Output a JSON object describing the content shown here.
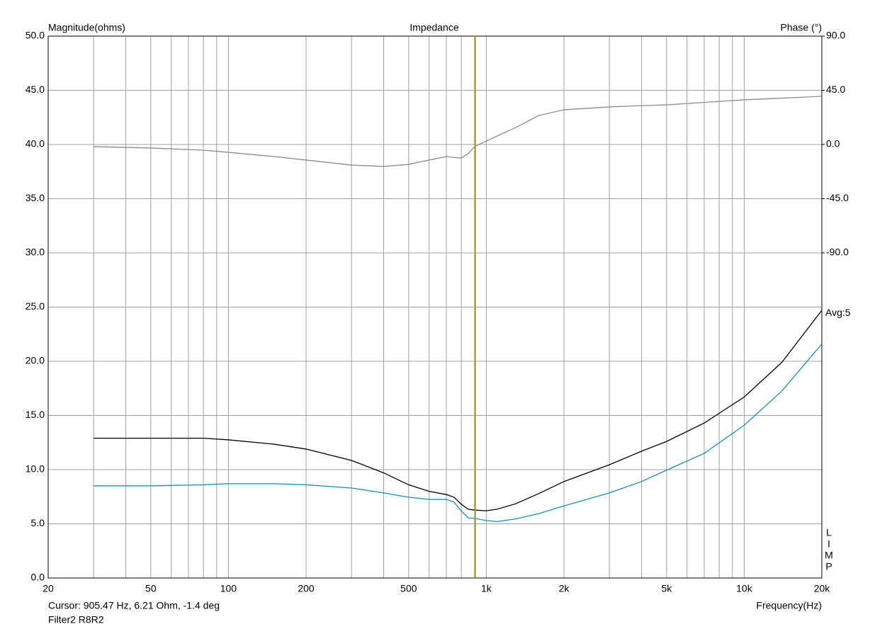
{
  "chart_data": {
    "type": "line",
    "title": "Impedance",
    "ylabel": "Magnitude(ohms)",
    "y2label": "Phase (°)",
    "xlabel": "Frequency(Hz)",
    "xscale": "log",
    "xlim": [
      20,
      20000
    ],
    "xticks": [
      20,
      50,
      100,
      200,
      500,
      {
        "value": 1000,
        "label": "1k"
      },
      {
        "value": 2000,
        "label": "2k"
      },
      {
        "value": 5000,
        "label": "5k"
      },
      {
        "value": 10000,
        "label": "10k"
      },
      {
        "value": 20000,
        "label": "20k"
      }
    ],
    "x_minor_ticks": [
      30,
      40,
      60,
      70,
      80,
      90,
      300,
      400,
      600,
      700,
      800,
      900,
      3000,
      4000,
      6000,
      7000,
      8000,
      9000
    ],
    "ylim": [
      0,
      50
    ],
    "yticks": [
      {
        "value": 0,
        "label": "0.0"
      },
      {
        "value": 5,
        "label": "5.0"
      },
      {
        "value": 10,
        "label": "10.0"
      },
      {
        "value": 15,
        "label": "15.0"
      },
      {
        "value": 20,
        "label": "20.0"
      },
      {
        "value": 25,
        "label": "25.0"
      },
      {
        "value": 30,
        "label": "30.0"
      },
      {
        "value": 35,
        "label": "35.0"
      },
      {
        "value": 40,
        "label": "40.0"
      },
      {
        "value": 45,
        "label": "45.0"
      },
      {
        "value": 50,
        "label": "50.0"
      }
    ],
    "y2lim": [
      -360,
      90
    ],
    "y2ticks": [
      {
        "value": -90,
        "label": "-90.0"
      },
      {
        "value": -45,
        "label": "-45.0"
      },
      {
        "value": 0,
        "label": "0.0"
      },
      {
        "value": 45,
        "label": "45.0"
      },
      {
        "value": 90,
        "label": "90.0"
      }
    ],
    "grid": true,
    "x": [
      30,
      50,
      80,
      100,
      150,
      200,
      300,
      400,
      500,
      600,
      700,
      750,
      800,
      850,
      900,
      1000,
      1100,
      1300,
      1600,
      2000,
      3000,
      4000,
      5000,
      7000,
      10000,
      14000,
      20000
    ],
    "series": [
      {
        "color": "#000000",
        "values": [
          12.9,
          12.9,
          12.9,
          12.75,
          12.35,
          11.9,
          10.85,
          9.7,
          8.6,
          8.0,
          7.7,
          7.45,
          6.8,
          6.35,
          6.27,
          6.2,
          6.35,
          6.85,
          7.8,
          8.9,
          10.45,
          11.7,
          12.6,
          14.3,
          16.7,
          19.9,
          24.7
        ]
      },
      {
        "color": "#1a8fb0",
        "values": [
          8.5,
          8.5,
          8.6,
          8.7,
          8.7,
          8.6,
          8.3,
          7.85,
          7.45,
          7.25,
          7.25,
          7.0,
          6.2,
          5.55,
          5.5,
          5.3,
          5.2,
          5.45,
          5.95,
          6.65,
          7.85,
          8.9,
          9.95,
          11.5,
          14.1,
          17.25,
          21.6
        ]
      },
      {
        "color": "#8c8c8c",
        "axis": "y2",
        "values": [
          -1.8,
          -2.9,
          -4.7,
          -6.5,
          -10,
          -12.9,
          -17.1,
          -18.2,
          -16.5,
          -12.9,
          -10,
          -10.8,
          -11.2,
          -7.6,
          -1.8,
          2.9,
          7,
          14.1,
          24.1,
          28.8,
          31.2,
          32.3,
          32.9,
          35,
          37.1,
          38.5,
          40
        ]
      }
    ],
    "cursor": {
      "x": 905.47,
      "color": "#a0a020",
      "text": "Cursor: 905.47 Hz, 6.21 Ohm, -1.4 deg"
    },
    "avg_label": "Avg:5",
    "side_letters": [
      "L",
      "I",
      "M",
      "P"
    ],
    "footer": "Filter2 R8R2"
  }
}
